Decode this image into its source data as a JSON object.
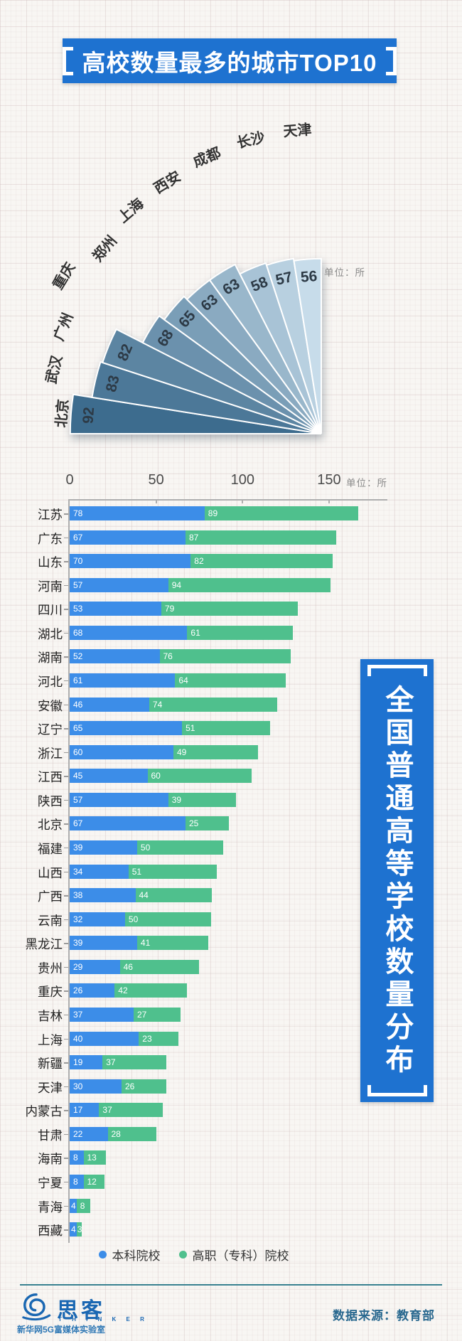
{
  "chart_data": [
    {
      "type": "bar",
      "variant": "radial-fan",
      "title": "高校数量最多的城市TOP10",
      "unit": "单位：所",
      "categories": [
        "北京",
        "武汉",
        "广州",
        "重庆",
        "郑州",
        "上海",
        "西安",
        "成都",
        "长沙",
        "天津"
      ],
      "values": [
        92,
        83,
        82,
        68,
        65,
        63,
        63,
        58,
        57,
        56
      ],
      "color_dark": "#3D6C8E",
      "color_light": "#C7DCEA"
    },
    {
      "type": "bar",
      "orientation": "horizontal",
      "stacked": true,
      "title": "全国普通高等学校数量分布",
      "unit": "单位：所",
      "xlim": [
        0,
        150
      ],
      "x_ticks": [
        0,
        50,
        100,
        150
      ],
      "legend_position": "bottom",
      "categories": [
        "江苏",
        "广东",
        "山东",
        "河南",
        "四川",
        "湖北",
        "湖南",
        "河北",
        "安徽",
        "辽宁",
        "浙江",
        "江西",
        "陕西",
        "北京",
        "福建",
        "山西",
        "广西",
        "云南",
        "黑龙江",
        "贵州",
        "重庆",
        "吉林",
        "上海",
        "新疆",
        "天津",
        "内蒙古",
        "甘肃",
        "海南",
        "宁夏",
        "青海",
        "西藏"
      ],
      "series": [
        {
          "name": "本科院校",
          "color": "#3C8DE8",
          "values": [
            78,
            67,
            70,
            57,
            53,
            68,
            52,
            61,
            46,
            65,
            60,
            45,
            57,
            67,
            39,
            34,
            38,
            32,
            39,
            29,
            26,
            37,
            40,
            19,
            30,
            17,
            22,
            8,
            8,
            4,
            4
          ]
        },
        {
          "name": "高职（专科）院校",
          "color": "#4FC08D",
          "values": [
            89,
            87,
            82,
            94,
            79,
            61,
            76,
            64,
            74,
            51,
            49,
            60,
            39,
            25,
            50,
            51,
            44,
            50,
            41,
            46,
            42,
            27,
            23,
            37,
            26,
            37,
            28,
            13,
            12,
            8,
            3
          ]
        }
      ]
    }
  ],
  "footer": {
    "brand": "思客",
    "brand_sub": "T H I N K E R",
    "lab": "新华网5G富媒体实验室",
    "source": "数据来源：教育部"
  }
}
